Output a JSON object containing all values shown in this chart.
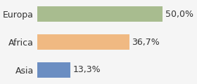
{
  "categories": [
    "Asia",
    "Africa",
    "Europa"
  ],
  "values": [
    13.3,
    36.7,
    50.0
  ],
  "labels": [
    "13,3%",
    "36,7%",
    "50,0%"
  ],
  "bar_colors": [
    "#6b8ec2",
    "#f0b982",
    "#a8bc8f"
  ],
  "background_color": "#f5f5f5",
  "xlim": [
    0,
    62
  ],
  "bar_height": 0.55,
  "label_fontsize": 9,
  "tick_fontsize": 9
}
